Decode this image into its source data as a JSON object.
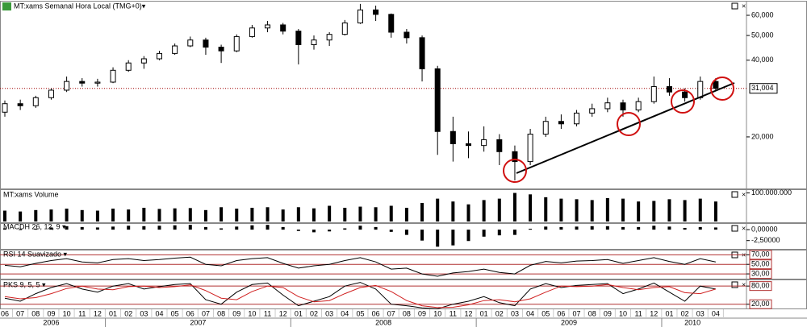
{
  "chart_data": {
    "type": "candlestick",
    "title": "MT:xams Semanal Hora Local (TMG+0)▾",
    "log_scale": true,
    "categories": [
      "06",
      "07",
      "08",
      "09",
      "10",
      "11",
      "12",
      "01",
      "02",
      "03",
      "04",
      "05",
      "06",
      "07",
      "08",
      "09",
      "10",
      "11",
      "12",
      "01",
      "02",
      "03",
      "04",
      "05",
      "06",
      "07",
      "08",
      "09",
      "10",
      "11",
      "12",
      "01",
      "02",
      "03",
      "04",
      "05",
      "06",
      "07",
      "08",
      "09",
      "10",
      "11",
      "12",
      "01",
      "02",
      "03",
      "04"
    ],
    "years": [
      "2006",
      "2007",
      "2008",
      "2009",
      "2010"
    ],
    "candles": [
      [
        25000,
        27800,
        24000,
        27000
      ],
      [
        27000,
        28000,
        25500,
        26500
      ],
      [
        26500,
        29000,
        26000,
        28500
      ],
      [
        28500,
        31000,
        28000,
        30500
      ],
      [
        30500,
        34500,
        30000,
        33000
      ],
      [
        33000,
        34000,
        31500,
        32500
      ],
      [
        32500,
        33800,
        31500,
        32800
      ],
      [
        32800,
        37500,
        32500,
        36500
      ],
      [
        36500,
        40000,
        36000,
        39000
      ],
      [
        39000,
        41500,
        37000,
        40500
      ],
      [
        40500,
        43500,
        40000,
        42500
      ],
      [
        42500,
        46500,
        42000,
        45500
      ],
      [
        45500,
        49500,
        45000,
        48000
      ],
      [
        48000,
        49000,
        42000,
        45000
      ],
      [
        45000,
        46000,
        39000,
        43500
      ],
      [
        43500,
        50500,
        43000,
        49500
      ],
      [
        49500,
        55000,
        49000,
        53500
      ],
      [
        53500,
        57000,
        51500,
        55000
      ],
      [
        55000,
        56000,
        50500,
        52000
      ],
      [
        52000,
        53000,
        38500,
        46000
      ],
      [
        46000,
        50000,
        44000,
        48000
      ],
      [
        48000,
        51500,
        45500,
        50500
      ],
      [
        50500,
        57500,
        50000,
        56000
      ],
      [
        56000,
        66500,
        55500,
        63000
      ],
      [
        63000,
        65500,
        57000,
        60500
      ],
      [
        60500,
        61000,
        49000,
        51500
      ],
      [
        51500,
        53000,
        46500,
        49000
      ],
      [
        49000,
        50000,
        33000,
        37000
      ],
      [
        37000,
        38000,
        17000,
        21000
      ],
      [
        21000,
        24000,
        16000,
        18800
      ],
      [
        18800,
        21000,
        16500,
        18500
      ],
      [
        18500,
        22000,
        17500,
        19500
      ],
      [
        19500,
        20500,
        15500,
        17500
      ],
      [
        17500,
        18500,
        13500,
        16000
      ],
      [
        16000,
        21500,
        15500,
        20500
      ],
      [
        20500,
        24000,
        20000,
        23000
      ],
      [
        23000,
        24500,
        21500,
        22500
      ],
      [
        22500,
        25500,
        22000,
        24800
      ],
      [
        24800,
        27000,
        24000,
        25800
      ],
      [
        25800,
        28500,
        25000,
        27200
      ],
      [
        27200,
        28000,
        24000,
        25500
      ],
      [
        25500,
        28500,
        25000,
        27500
      ],
      [
        27500,
        34500,
        27000,
        31500
      ],
      [
        31500,
        34000,
        29000,
        30000
      ],
      [
        30000,
        31000,
        27500,
        28500
      ],
      [
        28500,
        34500,
        28000,
        33000
      ],
      [
        33000,
        34000,
        30500,
        31004
      ]
    ],
    "ylim": [
      12640,
      67900
    ],
    "yticks": [
      {
        "value": 20000,
        "label": "20,000"
      },
      {
        "value": 40000,
        "label": "40,000"
      },
      {
        "value": 50000,
        "label": "50,000"
      },
      {
        "value": 60000,
        "label": "60,000"
      }
    ],
    "last_price": {
      "value": 31004,
      "label": "31,004"
    },
    "volume": {
      "title": "MT:xams Volume",
      "color": "#000000",
      "values": [
        38000000,
        35000000,
        40000000,
        42000000,
        45000000,
        40000000,
        38000000,
        45000000,
        42000000,
        48000000,
        44000000,
        46000000,
        47000000,
        40000000,
        50000000,
        45000000,
        48000000,
        50000000,
        42000000,
        50000000,
        46000000,
        55000000,
        48000000,
        52000000,
        50000000,
        55000000,
        48000000,
        65000000,
        80000000,
        70000000,
        60000000,
        75000000,
        80000000,
        100000000,
        95000000,
        85000000,
        80000000,
        78000000,
        75000000,
        82000000,
        80000000,
        70000000,
        72000000,
        78000000,
        75000000,
        80000000,
        70000000
      ],
      "ylim": [
        0,
        110000000
      ],
      "yticks": [
        {
          "value": 100000000,
          "label": "100.000.000"
        }
      ]
    },
    "macd": {
      "title": "MACDH 26, 12, 9 ▾",
      "color": "#000000",
      "values": [
        0.3,
        0.1,
        0.2,
        0.5,
        0.8,
        0.6,
        0.5,
        0.7,
        0.9,
        0.8,
        0.9,
        1.0,
        1.1,
        0.6,
        0.3,
        0.7,
        1.0,
        1.1,
        0.6,
        -0.3,
        -0.6,
        -0.4,
        0.3,
        0.9,
        0.6,
        -0.5,
        -1.2,
        -2.5,
        -3.9,
        -3.6,
        -2.6,
        -1.6,
        -1.3,
        -1.2,
        0.2,
        0.7,
        0.6,
        0.7,
        0.8,
        0.8,
        0.6,
        0.6,
        0.9,
        0.7,
        0.4,
        0.6,
        0.5
      ],
      "ylim": [
        -4.4,
        1.5
      ],
      "yticks": [
        {
          "value": 0,
          "label": "0,00000"
        },
        {
          "value": -2.5,
          "label": "-2,50000"
        }
      ]
    },
    "rsi": {
      "title": "RSI 14 Suavizado ▾",
      "color": "#000000",
      "guide_color": "#b03030",
      "values": [
        48,
        45,
        52,
        58,
        62,
        55,
        53,
        60,
        62,
        58,
        60,
        63,
        65,
        50,
        47,
        58,
        62,
        64,
        52,
        42,
        47,
        50,
        58,
        64,
        55,
        40,
        42,
        30,
        25,
        32,
        35,
        40,
        33,
        30,
        48,
        56,
        53,
        57,
        58,
        60,
        52,
        58,
        64,
        56,
        50,
        62,
        55
      ],
      "ylim": [
        20,
        79
      ],
      "yticks": [
        {
          "value": 70,
          "label": "70,00"
        },
        {
          "value": 50,
          "label": "50,00"
        },
        {
          "value": 30,
          "label": "30,00"
        }
      ]
    },
    "pks": {
      "title": "PKS 9, 5, 5 ▾",
      "guide_color": "#b03030",
      "series": [
        {
          "color": "#000000",
          "values": [
            40,
            30,
            55,
            75,
            88,
            70,
            60,
            80,
            88,
            70,
            78,
            85,
            88,
            35,
            20,
            60,
            85,
            90,
            50,
            15,
            30,
            45,
            80,
            92,
            70,
            20,
            15,
            8,
            5,
            20,
            30,
            45,
            25,
            15,
            70,
            88,
            75,
            82,
            85,
            88,
            55,
            70,
            90,
            60,
            30,
            80,
            70
          ]
        },
        {
          "color": "#d02020",
          "values": [
            45,
            38,
            42,
            55,
            72,
            80,
            70,
            68,
            78,
            80,
            75,
            78,
            84,
            65,
            40,
            35,
            62,
            80,
            75,
            45,
            28,
            32,
            55,
            75,
            82,
            62,
            32,
            15,
            9,
            10,
            18,
            32,
            35,
            28,
            38,
            60,
            80,
            78,
            80,
            85,
            75,
            68,
            75,
            78,
            58,
            55,
            70
          ]
        }
      ],
      "ylim": [
        6,
        99
      ],
      "yticks": [
        {
          "value": 80,
          "label": "80,00"
        },
        {
          "value": 20,
          "label": "20,00"
        }
      ]
    }
  }
}
